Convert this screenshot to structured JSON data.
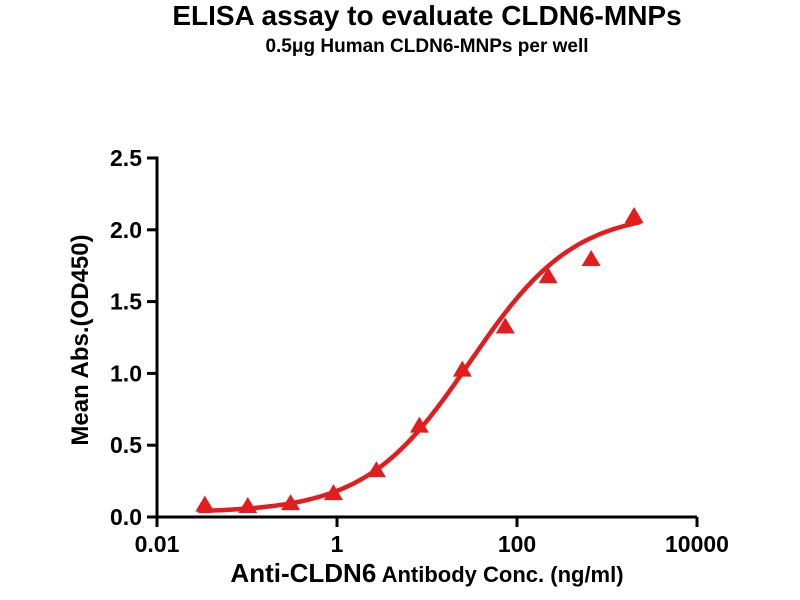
{
  "chart_data": {
    "type": "scatter",
    "title": "ELISA assay to evaluate CLDN6-MNPs",
    "subtitle": "0.5μg Human CLDN6-MNPs per well",
    "x_label_primary": "Anti-CLDN6",
    "x_label_secondary": " Antibody Conc. (ng/ml)",
    "y_label": "Mean Abs.(OD450)",
    "x_scale": "log",
    "x_range": [
      0.01,
      10000
    ],
    "y_range": [
      0,
      2.5
    ],
    "grid": false,
    "legend": false,
    "x_ticks": [
      {
        "value": 0.01,
        "label": "0.01"
      },
      {
        "value": 1,
        "label": "1"
      },
      {
        "value": 100,
        "label": "100"
      },
      {
        "value": 10000,
        "label": "10000"
      }
    ],
    "y_ticks": [
      {
        "value": 0.0,
        "label": "0.0"
      },
      {
        "value": 0.5,
        "label": "0.5"
      },
      {
        "value": 1.0,
        "label": "1.0"
      },
      {
        "value": 1.5,
        "label": "1.5"
      },
      {
        "value": 2.0,
        "label": "2.0"
      },
      {
        "value": 2.5,
        "label": "2.5"
      }
    ],
    "series": [
      {
        "marker": "triangle-up",
        "color": "#e31c1e",
        "points": [
          {
            "x": 0.034,
            "y": 0.09
          },
          {
            "x": 0.102,
            "y": 0.08
          },
          {
            "x": 0.305,
            "y": 0.1
          },
          {
            "x": 0.914,
            "y": 0.17
          },
          {
            "x": 2.74,
            "y": 0.33
          },
          {
            "x": 8.23,
            "y": 0.64
          },
          {
            "x": 24.7,
            "y": 1.03
          },
          {
            "x": 74.1,
            "y": 1.33
          },
          {
            "x": 222.2,
            "y": 1.68
          },
          {
            "x": 666.7,
            "y": 1.8
          },
          {
            "x": 2000,
            "y": 2.1
          }
        ],
        "fit_curve": {
          "model": "4PL",
          "bottom": 0.03,
          "top": 2.13,
          "ec50": 30,
          "hill": 0.75,
          "x_start": 0.03,
          "x_end": 2300
        }
      }
    ]
  },
  "colors": {
    "curve": "#e31c1e",
    "axis": "#000000",
    "text": "#000000",
    "background": "#ffffff"
  }
}
